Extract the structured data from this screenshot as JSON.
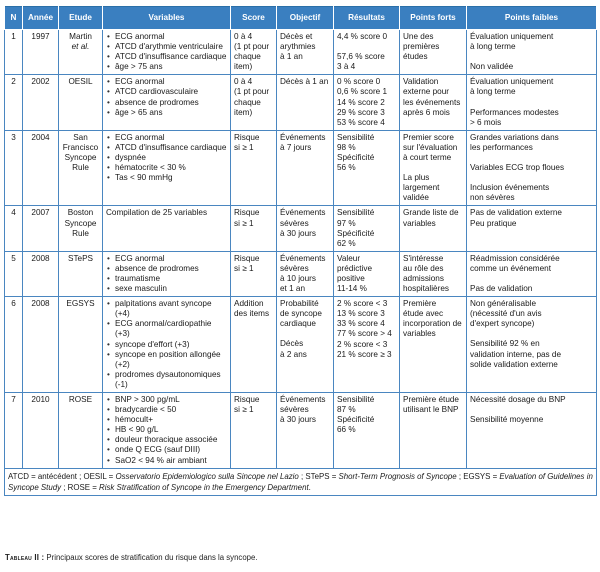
{
  "headers": [
    "N",
    "Année",
    "Etude",
    "Variables",
    "Score",
    "Objectif",
    "Résultats",
    "Points forts",
    "Points faibles"
  ],
  "rows": [
    {
      "n": "1",
      "annee": "1997",
      "etude": [
        "Martin",
        "et al."
      ],
      "variables": [
        "ECG anormal",
        "ATCD d'arythmie ventriculaire",
        "ATCD d'insuffisance cardiaque",
        "âge > 75 ans"
      ],
      "score": [
        "0 à 4",
        "(1 pt pour",
        "chaque",
        "item)"
      ],
      "objectif": [
        "Décès et",
        "arythmies",
        "à 1 an"
      ],
      "resultats": [
        "4,4 % score 0",
        "",
        "57,6 % score",
        "3 à 4"
      ],
      "forts": [
        "Une des",
        "premières",
        "études"
      ],
      "faibles": [
        "Évaluation uniquement",
        "à long terme",
        "",
        "Non validée"
      ]
    },
    {
      "n": "2",
      "annee": "2002",
      "etude": [
        "OESIL"
      ],
      "variables": [
        "ECG anormal",
        "ATCD cardiovasculaire",
        "absence de prodromes",
        "âge > 65 ans"
      ],
      "score": [
        "0 à 4",
        "(1 pt pour",
        "chaque",
        "item)"
      ],
      "objectif": [
        "Décès à 1 an"
      ],
      "resultats": [
        "0 % score 0",
        "0,6 % score 1",
        "14 % score 2",
        "29 % score 3",
        "53 % score 4"
      ],
      "forts": [
        "Validation",
        "externe pour",
        "les événements",
        "après 6 mois"
      ],
      "faibles": [
        "Évaluation uniquement",
        "à long terme",
        "",
        "Performances modestes",
        "> 6 mois"
      ]
    },
    {
      "n": "3",
      "annee": "2004",
      "etude": [
        "San",
        "Francisco",
        "Syncope",
        "Rule"
      ],
      "variables": [
        "ECG anormal",
        "ATCD d'insuffisance cardiaque",
        "dyspnée",
        "hématocrite < 30 %",
        "Tas < 90 mmHg"
      ],
      "score": [
        "Risque",
        "si ≥ 1"
      ],
      "objectif": [
        "Événements",
        "à 7 jours"
      ],
      "resultats": [
        "Sensibilité",
        "98 %",
        "Spécificité",
        "56 %"
      ],
      "forts": [
        "Premier score",
        "sur l'évaluation",
        "à court terme",
        "",
        "La plus",
        "largement",
        "validée"
      ],
      "faibles": [
        "Grandes variations dans",
        "les performances",
        "",
        "Variables ECG trop floues",
        "",
        "Inclusion événements",
        "non sévères"
      ]
    },
    {
      "n": "4",
      "annee": "2007",
      "etude": [
        "Boston",
        "Syncope",
        "Rule"
      ],
      "variables_text": "Compilation de 25 variables",
      "score": [
        "Risque",
        "si ≥ 1"
      ],
      "objectif": [
        "Événements",
        "sévères",
        "à 30 jours"
      ],
      "resultats": [
        "Sensibilité",
        "97 %",
        "Spécificité",
        "62 %"
      ],
      "forts": [
        "Grande liste de",
        "variables"
      ],
      "faibles": [
        "Pas de validation externe",
        "Peu pratique"
      ]
    },
    {
      "n": "5",
      "annee": "2008",
      "etude": [
        "STePS"
      ],
      "variables": [
        "ECG anormal",
        "absence de prodromes",
        "traumatisme",
        "sexe masculin"
      ],
      "score": [
        "Risque",
        "si ≥ 1"
      ],
      "objectif": [
        "Événements",
        "sévères",
        "à 10 jours",
        "et 1 an"
      ],
      "resultats": [
        "Valeur",
        "prédictive",
        "positive",
        "11-14 %"
      ],
      "forts": [
        "S'intéresse",
        "au rôle des",
        "admissions",
        "hospitalières"
      ],
      "faibles": [
        "Réadmission considérée",
        "comme un événement",
        "",
        "Pas de validation"
      ]
    },
    {
      "n": "6",
      "annee": "2008",
      "etude": [
        "EGSYS"
      ],
      "variables": [
        "palpitations avant syncope (+4)",
        "ECG anormal/cardiopathie (+3)",
        "syncope d'effort (+3)",
        "syncope en position allongée (+2)",
        "prodromes dysautonomiques (-1)"
      ],
      "score": [
        "Addition",
        "des items"
      ],
      "objectif": [
        "Probabilité",
        "de syncope",
        "cardiaque",
        "",
        "Décès",
        "à 2 ans"
      ],
      "resultats": [
        "2 % score < 3",
        "13 % score 3",
        "33 % score 4",
        "77 % score > 4",
        "2 % score < 3",
        "21 % score ≥ 3"
      ],
      "forts": [
        "Première",
        "étude avec",
        "incorporation de",
        "variables"
      ],
      "faibles": [
        "Non généralisable",
        "(nécessité d'un avis",
        "d'expert syncope)",
        "",
        "Sensibilité 92 % en",
        "validation interne, pas de",
        "solide validation externe"
      ]
    },
    {
      "n": "7",
      "annee": "2010",
      "etude": [
        "ROSE"
      ],
      "variables": [
        "BNP > 300 pg/mL",
        "bradycardie < 50",
        "hémocult+",
        "HB < 90 g/L",
        "douleur thoracique associée",
        "onde Q ECG (sauf DIII)",
        "SaO2 < 94 % air ambiant"
      ],
      "score": [
        "Risque",
        "si ≥ 1"
      ],
      "objectif": [
        "Événements",
        "sévères",
        "à 30 jours"
      ],
      "resultats": [
        "Sensibilité",
        "87 %",
        "Spécificité",
        "66 %"
      ],
      "forts": [
        "Première étude",
        "utilisant le BNP"
      ],
      "faibles": [
        "Nécessité dosage du BNP",
        "",
        "Sensibilité moyenne"
      ]
    }
  ],
  "footnote": {
    "p1": "ATCD = antécédent ; OESIL = ",
    "i1": "Osservatorio Epidemiologico sulla Sincope nel Lazio",
    "p2": " ; STePS = ",
    "i2": "Short-Term Prognosis of Syncope",
    "p3": " ; EGSYS = ",
    "i3": "Evaluation of Guidelines in Syncope Study",
    "p4": " ; ROSE = ",
    "i4": "Risk Stratification of Syncope in the Emergency Department",
    "p5": "."
  },
  "caption": {
    "label": "Tableau II :",
    "text": " Principaux scores de stratification du risque dans la syncope."
  },
  "colors": {
    "header_bg": "#3a7fc0",
    "border": "#4a86c0"
  }
}
